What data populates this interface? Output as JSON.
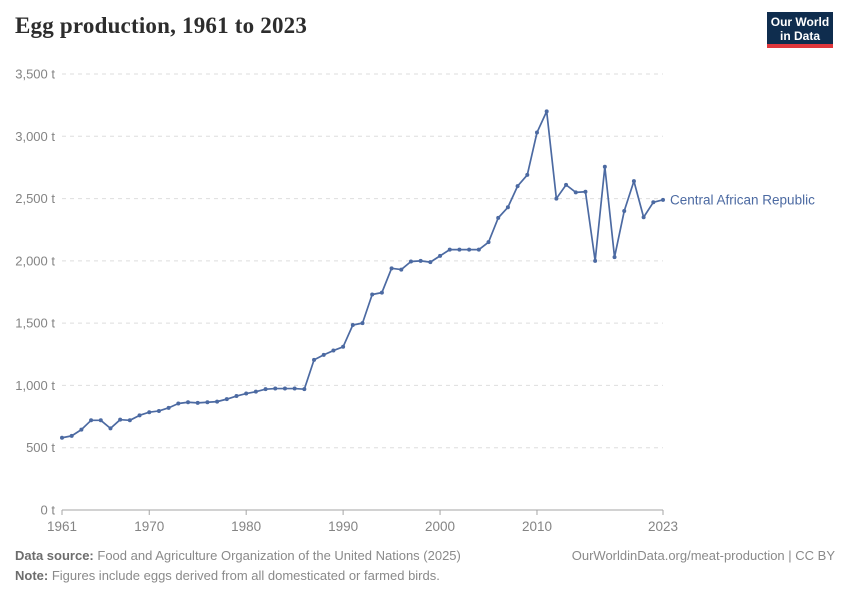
{
  "header": {
    "title": "Egg production, 1961 to 2023",
    "logo": {
      "line1": "Our World",
      "line2": "in Data"
    }
  },
  "chart_data": {
    "type": "line",
    "title": "Egg production, 1961 to 2023",
    "unit": "t",
    "xlim": [
      1961,
      2023
    ],
    "ylim": [
      0,
      3500
    ],
    "grid": "horizontal-dashed",
    "legend_position": "end-of-line-label",
    "x_ticks": {
      "values": [
        1961,
        1970,
        1980,
        1990,
        2000,
        2010,
        2023
      ],
      "labels": [
        "1961",
        "1970",
        "1980",
        "1990",
        "2000",
        "2010",
        "2023"
      ]
    },
    "y_ticks": {
      "values": [
        0,
        500,
        1000,
        1500,
        2000,
        2500,
        3000,
        3500
      ],
      "labels": [
        "0 t",
        "500 t",
        "1,000 t",
        "1,500 t",
        "2,000 t",
        "2,500 t",
        "3,000 t",
        "3,500 t"
      ]
    },
    "series": [
      {
        "name": "Central African Republic",
        "color": "#4C6AA2",
        "x": [
          1961,
          1962,
          1963,
          1964,
          1965,
          1966,
          1967,
          1968,
          1969,
          1970,
          1971,
          1972,
          1973,
          1974,
          1975,
          1976,
          1977,
          1978,
          1979,
          1980,
          1981,
          1982,
          1983,
          1984,
          1985,
          1986,
          1987,
          1988,
          1989,
          1990,
          1991,
          1992,
          1993,
          1994,
          1995,
          1996,
          1997,
          1998,
          1999,
          2000,
          2001,
          2002,
          2003,
          2004,
          2005,
          2006,
          2007,
          2008,
          2009,
          2010,
          2011,
          2012,
          2013,
          2014,
          2015,
          2016,
          2017,
          2018,
          2019,
          2020,
          2021,
          2022,
          2023
        ],
        "values": [
          580,
          595,
          645,
          720,
          720,
          655,
          725,
          720,
          760,
          785,
          795,
          820,
          855,
          865,
          860,
          865,
          870,
          890,
          915,
          935,
          950,
          970,
          975,
          975,
          975,
          970,
          1205,
          1245,
          1280,
          1310,
          1485,
          1500,
          1730,
          1745,
          1940,
          1930,
          1995,
          2000,
          1990,
          2040,
          2090,
          2090,
          2090,
          2090,
          2150,
          2345,
          2430,
          2600,
          2690,
          3030,
          3200,
          2500,
          2610,
          2550,
          2555,
          2000,
          2755,
          2030,
          2400,
          2640,
          2350,
          2470,
          2490
        ]
      }
    ]
  },
  "footer": {
    "source_label": "Data source:",
    "source_text": "Food and Agriculture Organization of the United Nations (2025)",
    "note_label": "Note:",
    "note_text": "Figures include eggs derived from all domesticated or farmed birds.",
    "credit": "OurWorldinData.org/meat-production | CC BY"
  },
  "colors": {
    "series_line": "#4C6AA2",
    "gridline": "#dedede",
    "axis": "#a5a5a5",
    "tick_label": "#848484",
    "title_text": "#2d2d2d",
    "footer_text": "#8a8a8a",
    "footer_bold": "#6d6d6d",
    "logo_background": "#0f2d4e",
    "logo_accent": "#e0373c"
  }
}
